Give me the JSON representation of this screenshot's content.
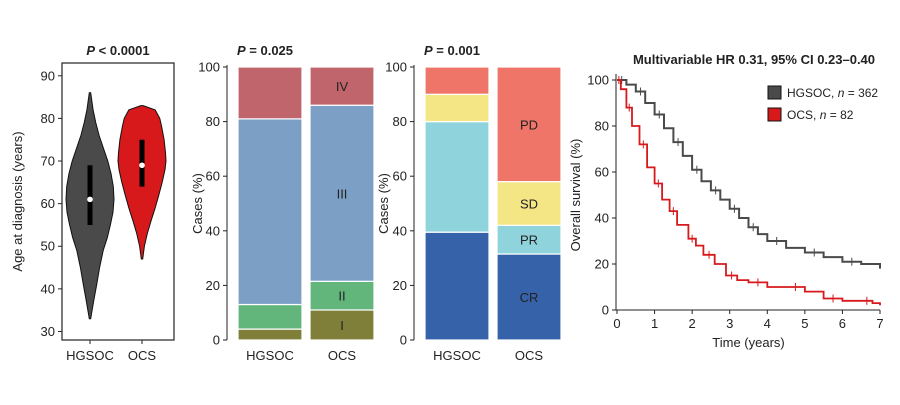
{
  "colors": {
    "hgsoc": "#4a4a4a",
    "ocs": "#d7191c",
    "stage_IV": "#c0656b",
    "stage_III": "#7b9fc5",
    "stage_II": "#62b57b",
    "stage_I": "#7f7f3a",
    "resp_PD": "#ef7569",
    "resp_SD": "#f4e585",
    "resp_PR": "#8fd4dc",
    "resp_CR": "#3562a8"
  },
  "chart_data": [
    {
      "type": "violin",
      "title_italic": "P",
      "title_rest": " < 0.0001",
      "ylabel": "Age at diagnosis (years)",
      "ylim": [
        28,
        93
      ],
      "yticks": [
        30,
        40,
        50,
        60,
        70,
        80,
        90
      ],
      "categories": [
        "HGSOC",
        "OCS"
      ],
      "series": [
        {
          "category": "HGSOC",
          "min": 33,
          "q1": 55,
          "median": 61,
          "q3": 69,
          "max": 86,
          "density": [
            [
              33,
              0.03
            ],
            [
              37,
              0.15
            ],
            [
              41,
              0.28
            ],
            [
              45,
              0.4
            ],
            [
              49,
              0.55
            ],
            [
              52,
              0.72
            ],
            [
              55,
              0.85
            ],
            [
              58,
              0.96
            ],
            [
              61,
              1.0
            ],
            [
              64,
              0.97
            ],
            [
              67,
              0.88
            ],
            [
              70,
              0.74
            ],
            [
              73,
              0.56
            ],
            [
              76,
              0.38
            ],
            [
              79,
              0.24
            ],
            [
              82,
              0.13
            ],
            [
              86,
              0.03
            ]
          ]
        },
        {
          "category": "OCS",
          "min": 47,
          "q1": 64,
          "median": 69,
          "q3": 75,
          "max": 83,
          "density": [
            [
              47,
              0.03
            ],
            [
              50,
              0.1
            ],
            [
              53,
              0.22
            ],
            [
              56,
              0.38
            ],
            [
              59,
              0.55
            ],
            [
              62,
              0.7
            ],
            [
              65,
              0.84
            ],
            [
              68,
              0.96
            ],
            [
              70,
              1.0
            ],
            [
              72,
              0.98
            ],
            [
              75,
              0.92
            ],
            [
              78,
              0.82
            ],
            [
              80,
              0.74
            ],
            [
              82,
              0.55
            ],
            [
              83,
              0.05
            ]
          ]
        }
      ]
    },
    {
      "type": "stacked-bar",
      "title_italic": "P",
      "title_rest": " = 0.025",
      "ylabel": "Cases (%)",
      "ylim": [
        0,
        100
      ],
      "yticks": [
        0,
        20,
        40,
        60,
        80,
        100
      ],
      "categories": [
        "HGSOC",
        "OCS"
      ],
      "series": [
        {
          "key": "stage_I",
          "name": "I",
          "values": [
            4,
            11
          ]
        },
        {
          "key": "stage_II",
          "name": "II",
          "values": [
            9,
            10.5
          ]
        },
        {
          "key": "stage_III",
          "name": "III",
          "values": [
            68,
            64.5
          ]
        },
        {
          "key": "stage_IV",
          "name": "IV",
          "values": [
            19,
            14
          ]
        }
      ]
    },
    {
      "type": "stacked-bar",
      "title_italic": "P",
      "title_rest": " = 0.001",
      "ylabel": "Cases (%)",
      "ylim": [
        0,
        100
      ],
      "yticks": [
        0,
        20,
        40,
        60,
        80,
        100
      ],
      "categories": [
        "HGSOC",
        "OCS"
      ],
      "series": [
        {
          "key": "resp_CR",
          "name": "CR",
          "values": [
            39.5,
            31.5
          ]
        },
        {
          "key": "resp_PR",
          "name": "PR",
          "values": [
            40.5,
            10.5
          ]
        },
        {
          "key": "resp_SD",
          "name": "SD",
          "values": [
            10,
            16
          ]
        },
        {
          "key": "resp_PD",
          "name": "PD",
          "values": [
            10,
            42
          ]
        }
      ]
    },
    {
      "type": "line",
      "title": "Multivariable HR 0.31, 95% CI 0.23–0.40",
      "xlabel": "Time (years)",
      "ylabel": "Overall survival (%)",
      "xlim": [
        0,
        7
      ],
      "ylim": [
        0,
        100
      ],
      "xticks": [
        0,
        1,
        2,
        3,
        4,
        5,
        6,
        7
      ],
      "yticks": [
        0,
        20,
        40,
        60,
        80,
        100
      ],
      "legend_position": "top-right",
      "series": [
        {
          "name": "HGSOC",
          "n_label": "362",
          "color_key": "hgsoc",
          "x": [
            0,
            0.25,
            0.5,
            0.75,
            1.0,
            1.25,
            1.5,
            1.75,
            2.0,
            2.25,
            2.5,
            2.75,
            3.0,
            3.25,
            3.5,
            3.75,
            4.0,
            4.5,
            5.0,
            5.5,
            6.0,
            6.5,
            7.0
          ],
          "y": [
            100,
            98,
            95,
            90,
            85,
            79,
            73,
            67,
            61,
            56,
            52,
            48,
            44,
            40,
            36,
            33,
            30,
            27,
            25,
            23,
            21,
            20,
            18
          ]
        },
        {
          "name": "OCS",
          "n_label": "82",
          "color_key": "ocs",
          "x": [
            0,
            0.1,
            0.25,
            0.4,
            0.6,
            0.8,
            1.0,
            1.2,
            1.4,
            1.6,
            1.9,
            2.1,
            2.3,
            2.6,
            2.9,
            3.2,
            3.5,
            4.0,
            4.5,
            5.0,
            5.5,
            6.0,
            6.5,
            6.8,
            7.0
          ],
          "y": [
            100,
            96,
            88,
            80,
            72,
            62,
            55,
            48,
            43,
            37,
            31,
            28,
            24,
            20,
            15,
            13,
            12,
            10,
            10,
            8,
            5,
            4,
            4,
            3,
            2
          ]
        }
      ]
    }
  ]
}
